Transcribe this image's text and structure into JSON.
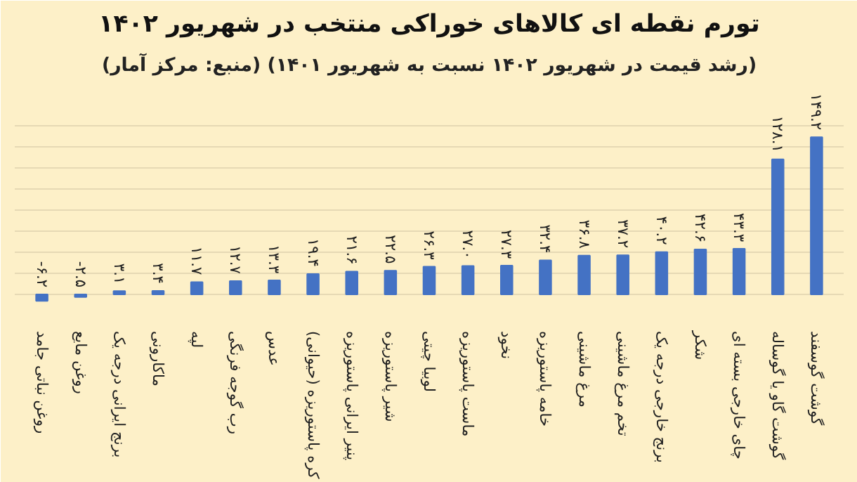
{
  "chart_data": {
    "type": "bar",
    "title": "تورم نقطه ای کالاهای خوراکی منتخب در شهریور ۱۴۰۲",
    "subtitle": "(رشد قیمت در شهریور ۱۴۰۲ نسبت به شهریور ۱۴۰۱) (منبع: مرکز آمار)",
    "categories": [
      "روغن نباتی جامد",
      "روغن مایع",
      "برنج ایرانی درجه یک",
      "ماکارونی",
      "لپه",
      "رب گوجه فرنگی",
      "عدس",
      "کره پاستوریزه (حیوانی)",
      "پنیر ایرانی پاستوریزه",
      "شیر پاستوریزه",
      "لوبیا چیتی",
      "ماست پاستوریزه",
      "نخود",
      "خامه پاستوریزه",
      "مرغ ماشینی",
      "تخم مرغ ماشینی",
      "برنج خارجی درجه یک",
      "شکر",
      "چای خارجی بسته ای",
      "گوشت گاو یا گوساله",
      "گوشت گوسفند"
    ],
    "values": [
      -6.2,
      -2.5,
      3.1,
      3.4,
      11.7,
      12.7,
      13.3,
      19.4,
      21.6,
      22.5,
      26.3,
      27.0,
      27.3,
      32.4,
      36.8,
      37.2,
      40.2,
      42.6,
      43.3,
      128.1,
      149.2
    ],
    "value_labels": [
      "-۶.۲",
      "-۲.۵",
      "۳.۱",
      "۳.۴",
      "۱۱.۷",
      "۱۲.۷",
      "۱۳.۳",
      "۱۹.۴",
      "۲۱.۶",
      "۲۲.۵",
      "۲۶.۳",
      "۲۷.۰",
      "۲۷.۳",
      "۳۲.۴",
      "۳۶.۸",
      "۳۷.۲",
      "۴۰.۲",
      "۴۲.۶",
      "۴۳.۳",
      "۱۲۸.۱",
      "۱۴۹.۲"
    ],
    "color": "#4472c4",
    "ylim": [
      -20,
      200
    ],
    "yticks": [
      {
        "value": -20,
        "label": null
      },
      {
        "value": 0,
        "label": null
      },
      {
        "value": 20,
        "label": null
      },
      {
        "value": 40,
        "label": null
      },
      {
        "value": 60,
        "label": null
      },
      {
        "value": 80,
        "label": null
      },
      {
        "value": 100,
        "label": null
      },
      {
        "value": 120,
        "label": null
      },
      {
        "value": 140,
        "label": null
      },
      {
        "value": 160,
        "label": null
      }
    ],
    "grid": "y",
    "tick_labels": "x"
  }
}
